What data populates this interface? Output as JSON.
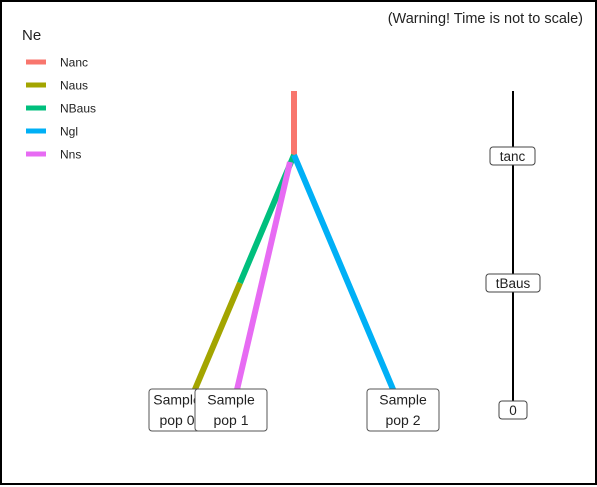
{
  "warning": "(Warning! Time is not to scale)",
  "legend": {
    "title": "Ne",
    "items": [
      {
        "label": "Nanc",
        "color": "#F8766D"
      },
      {
        "label": "Naus",
        "color": "#A3A500"
      },
      {
        "label": "NBaus",
        "color": "#00BF7D"
      },
      {
        "label": "Ngl",
        "color": "#00B0F6"
      },
      {
        "label": "Nns",
        "color": "#E76BF3"
      }
    ]
  },
  "samples": {
    "pop0": [
      "Sample",
      "pop 0"
    ],
    "pop1": [
      "Sample",
      "pop 1"
    ],
    "pop2": [
      "Sample",
      "pop 2"
    ]
  },
  "time_axis": {
    "labels": [
      "tanc",
      "tBaus",
      "0"
    ]
  }
}
